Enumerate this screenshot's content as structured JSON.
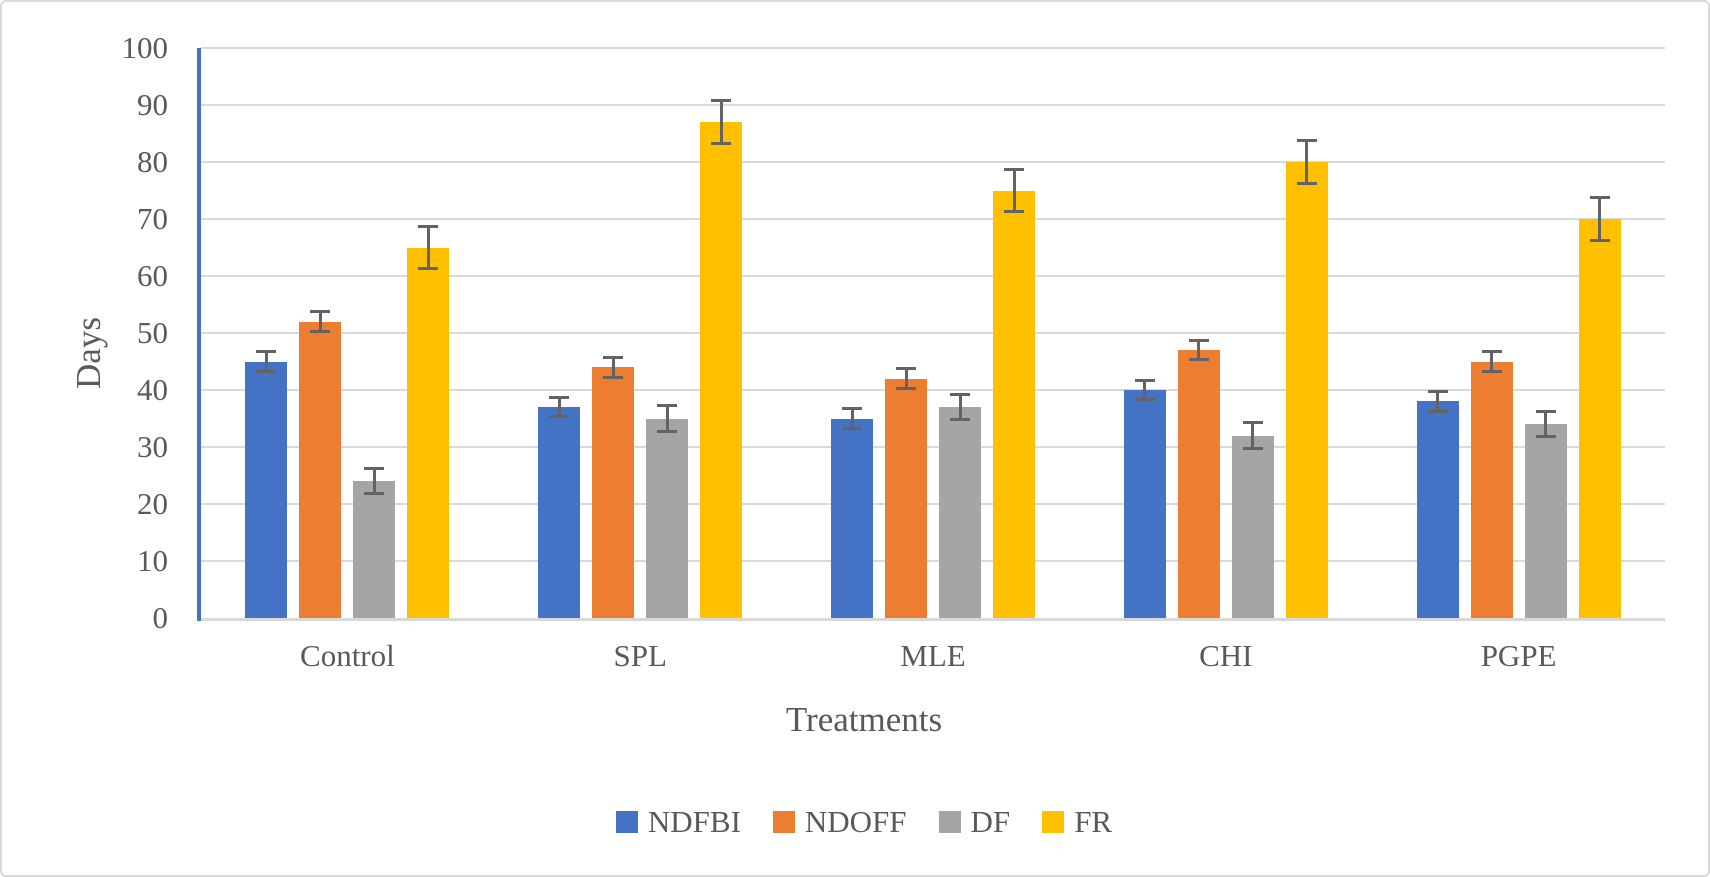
{
  "style": {
    "background": "#FFFFFF",
    "border_color": "#D9D9D9",
    "gridline_color": "#D9D9D9",
    "y_axis_line_color": "#4472C4",
    "x_axis_line_color": "#D9D9D9",
    "error_bar_color": "#636363",
    "text_color": "#595959"
  },
  "chart_data": {
    "type": "bar",
    "title": "",
    "xlabel": "Treatments",
    "ylabel": "Days",
    "categories": [
      "Control",
      "SPL",
      "MLE",
      "CHI",
      "PGPE"
    ],
    "series": [
      {
        "name": "NDFBI",
        "color": "#4472C4",
        "values": [
          45,
          37,
          35,
          40,
          38
        ],
        "error": 2
      },
      {
        "name": "NDOFF",
        "color": "#ED7D31",
        "values": [
          52,
          44,
          42,
          47,
          45
        ],
        "error": 2
      },
      {
        "name": "DF",
        "color": "#A5A5A5",
        "values": [
          24,
          35,
          37,
          32,
          34
        ],
        "error": 2.5
      },
      {
        "name": "FR",
        "color": "#FFC000",
        "values": [
          65,
          87,
          75,
          80,
          70
        ],
        "error": 4
      }
    ],
    "ylim": [
      0,
      100
    ],
    "yticks": [
      0,
      10,
      20,
      30,
      40,
      50,
      60,
      70,
      80,
      90,
      100
    ],
    "grid": true,
    "legend_position": "bottom",
    "error_bars": true
  }
}
